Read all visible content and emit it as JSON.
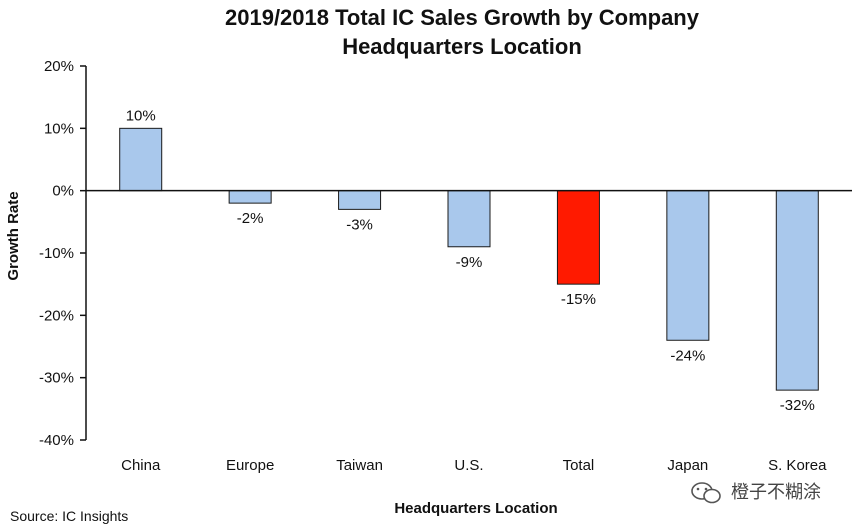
{
  "chart_data": {
    "type": "bar",
    "title": [
      "2019/2018 Total IC Sales Growth by Company",
      "Headquarters Location"
    ],
    "xlabel": "Headquarters Location",
    "ylabel": "Growth Rate",
    "categories": [
      "China",
      "Europe",
      "Taiwan",
      "U.S.",
      "Total",
      "Japan",
      "S. Korea"
    ],
    "values": [
      10,
      -2,
      -3,
      -9,
      -15,
      -24,
      -32
    ],
    "data_labels": [
      "10%",
      "-2%",
      "-3%",
      "-9%",
      "-15%",
      "-24%",
      "-32%"
    ],
    "ylim": [
      -40,
      20
    ],
    "yticks": [
      20,
      10,
      0,
      -10,
      -20,
      -30,
      -40
    ],
    "ytick_labels": [
      "20%",
      "10%",
      "0%",
      "-10%",
      "-20%",
      "-30%",
      "-40%"
    ],
    "highlight_category": "Total",
    "colors": {
      "bar": "#a9c8ec",
      "highlight": "#ff1a00",
      "outline": "#1a1a1a"
    },
    "grid": false
  },
  "source": "Source: IC Insights",
  "watermark": "橙子不糊涂"
}
